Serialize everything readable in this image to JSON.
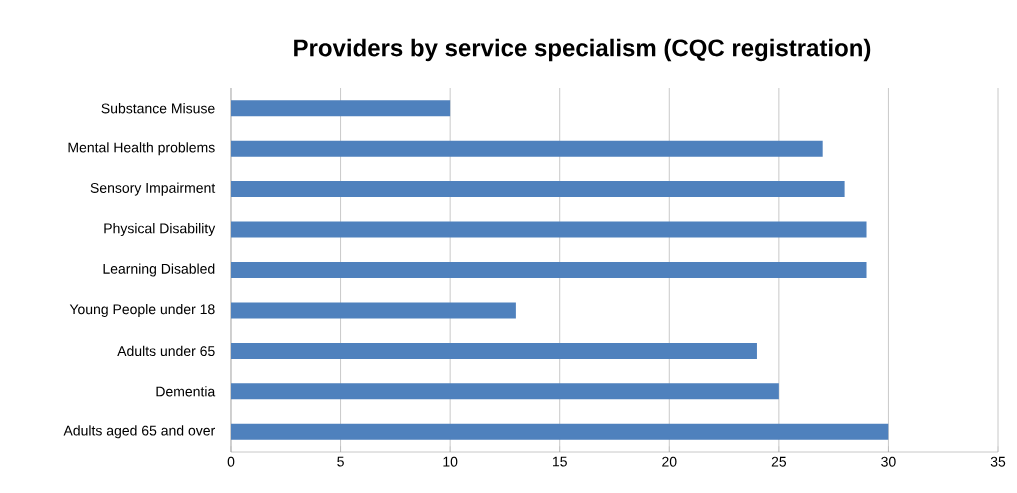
{
  "chart_data": {
    "type": "bar",
    "orientation": "horizontal",
    "title": "Providers by service specialism (CQC registration)",
    "categories": [
      "Substance Misuse",
      "Mental Health problems",
      "Sensory Impairment",
      "Physical Disability",
      "Learning Disabled",
      "Young People under 18",
      "Adults under 65",
      "Dementia",
      "Adults aged 65 and over"
    ],
    "values": [
      10,
      27,
      28,
      29,
      29,
      13,
      24,
      25,
      30
    ],
    "color": "#4f81bd",
    "xlim": [
      0,
      35
    ],
    "xticks": [
      0,
      5,
      10,
      15,
      20,
      25,
      30,
      35
    ],
    "grid": "x"
  }
}
